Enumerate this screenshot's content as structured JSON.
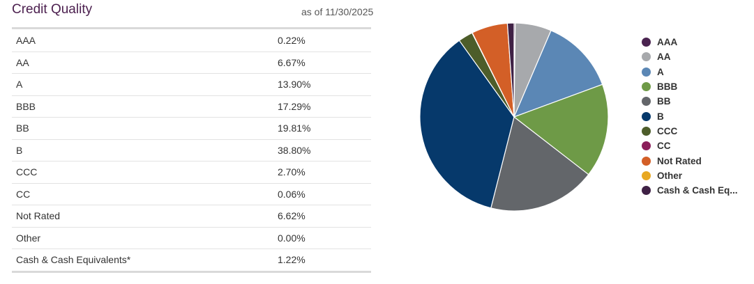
{
  "header": {
    "title": "Credit Quality",
    "as_of": "as of 11/30/2025"
  },
  "chart_data": {
    "type": "pie",
    "title": "Credit Quality",
    "slices": [
      {
        "label": "AAA",
        "value": 0.22,
        "display": "0.22%",
        "color": "#4a2350",
        "legend": "AAA"
      },
      {
        "label": "AA",
        "value": 6.67,
        "display": "6.67%",
        "color": "#a7a9ac",
        "legend": "AA"
      },
      {
        "label": "A",
        "value": 13.9,
        "display": "13.90%",
        "color": "#5b87b5",
        "legend": "A"
      },
      {
        "label": "BBB",
        "value": 17.29,
        "display": "17.29%",
        "color": "#6e9a47",
        "legend": "BBB"
      },
      {
        "label": "BB",
        "value": 19.81,
        "display": "19.81%",
        "color": "#63666a",
        "legend": "BB"
      },
      {
        "label": "B",
        "value": 38.8,
        "display": "38.80%",
        "color": "#06396b",
        "legend": "B"
      },
      {
        "label": "CCC",
        "value": 2.7,
        "display": "2.70%",
        "color": "#4d5d2a",
        "legend": "CCC"
      },
      {
        "label": "CC",
        "value": 0.06,
        "display": "0.06%",
        "color": "#8b1e5a",
        "legend": "CC"
      },
      {
        "label": "Not Rated",
        "value": 6.62,
        "display": "6.62%",
        "color": "#d35f27",
        "legend": "Not Rated"
      },
      {
        "label": "Other",
        "value": 0.0,
        "display": "0.00%",
        "color": "#e8a822",
        "legend": "Other"
      },
      {
        "label": "Cash & Cash Equivalents*",
        "value": 1.22,
        "display": "1.22%",
        "color": "#3f2145",
        "legend": "Cash & Cash Eq..."
      }
    ],
    "legend_position": "right"
  }
}
